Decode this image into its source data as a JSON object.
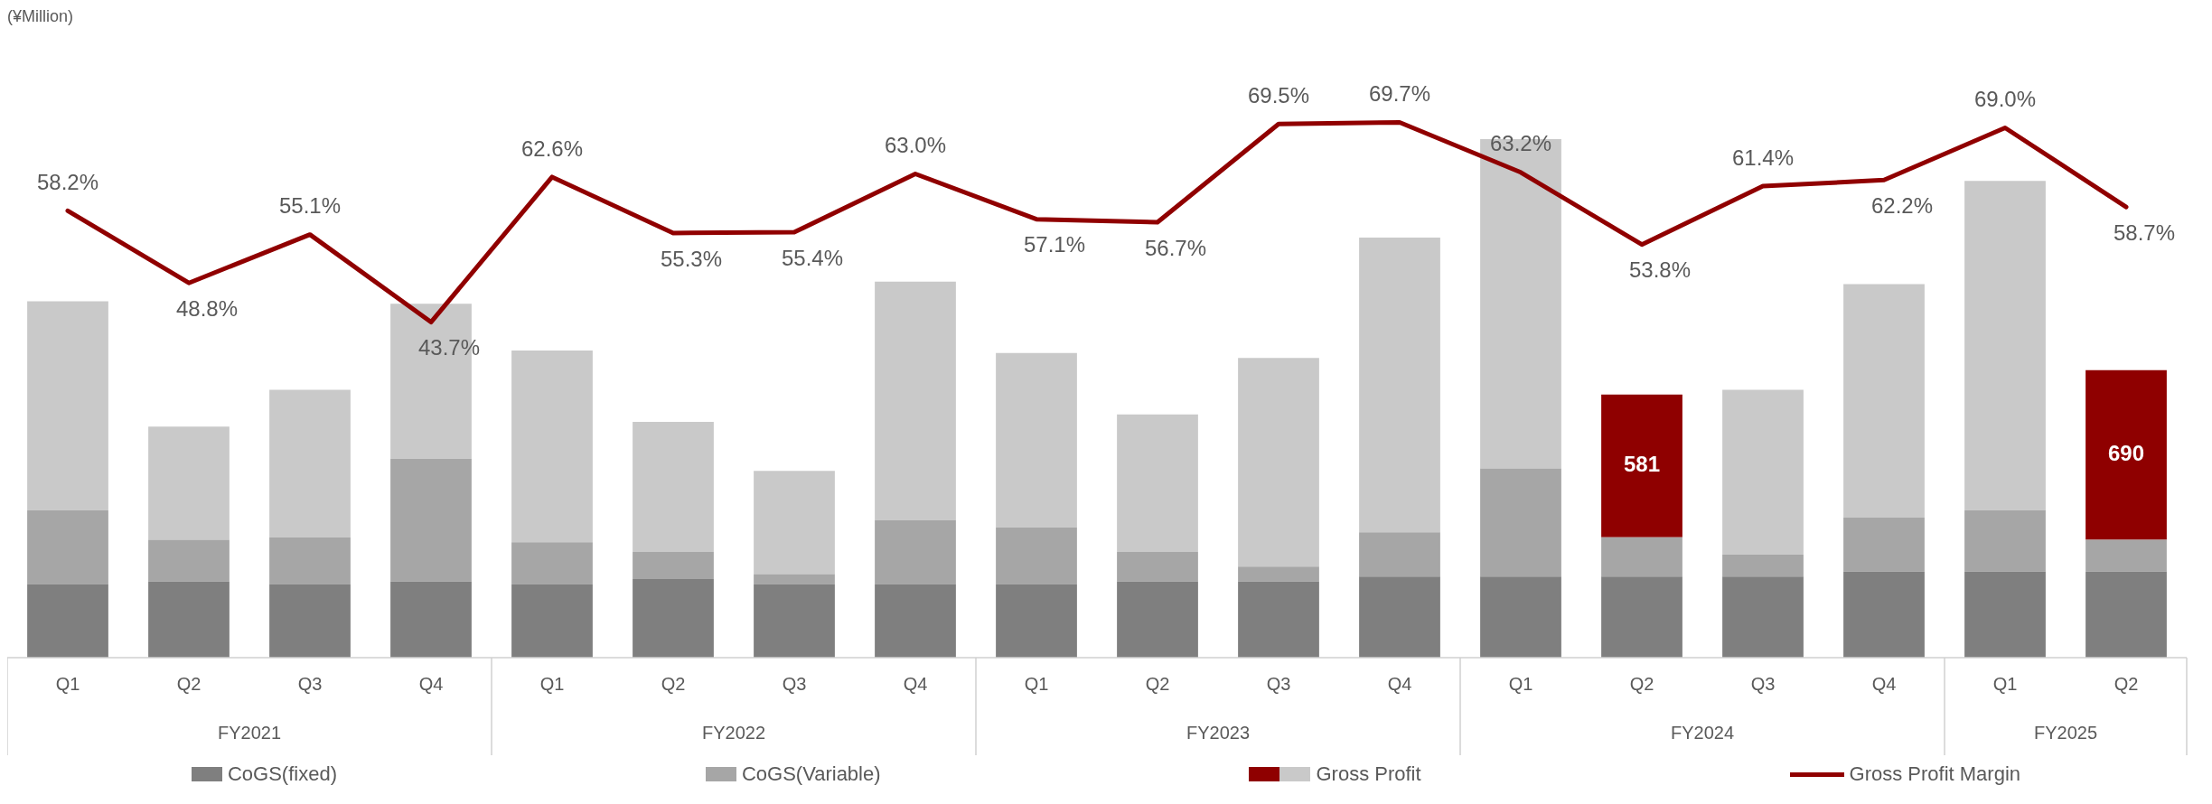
{
  "chart_data": {
    "type": "bar",
    "stacked": true,
    "tick_labels": "x",
    "categories": [
      "Q1",
      "Q2",
      "Q3",
      "Q4",
      "Q1",
      "Q2",
      "Q3",
      "Q4",
      "Q1",
      "Q2",
      "Q3",
      "Q4",
      "Q1",
      "Q2",
      "Q3",
      "Q4",
      "Q1",
      "Q2"
    ],
    "annotations": [
      "(¥Million)",
      "FY2021",
      "FY2022",
      "FY2023",
      "FY2024",
      "FY2025"
    ],
    "series": [
      {
        "name": "CoGS(fixed)",
        "color": "#7f7f7f",
        "values": [
          300,
          310,
          300,
          310,
          300,
          320,
          300,
          300,
          300,
          310,
          310,
          330,
          330,
          330,
          330,
          350,
          350,
          350
        ]
      },
      {
        "name": "CoGS(Variable)",
        "color": "#a6a6a6",
        "values": [
          300,
          170,
          190,
          500,
          170,
          110,
          40,
          260,
          230,
          120,
          60,
          180,
          440,
          160,
          90,
          220,
          250,
          130
        ]
      },
      {
        "name": "Gross Profit",
        "color": "#c9c9c9",
        "colors": [
          "#c9c9c9",
          "#c9c9c9",
          "#c9c9c9",
          "#c9c9c9",
          "#c9c9c9",
          "#c9c9c9",
          "#c9c9c9",
          "#c9c9c9",
          "#c9c9c9",
          "#c9c9c9",
          "#c9c9c9",
          "#c9c9c9",
          "#c9c9c9",
          "#8f0000",
          "#c9c9c9",
          "#c9c9c9",
          "#c9c9c9",
          "#8f0000"
        ],
        "values": [
          850,
          460,
          600,
          630,
          780,
          530,
          420,
          970,
          710,
          560,
          850,
          1200,
          1340,
          581,
          670,
          950,
          1340,
          690
        ],
        "value_labels": [
          null,
          null,
          null,
          null,
          null,
          null,
          null,
          null,
          null,
          null,
          null,
          null,
          null,
          "581",
          null,
          null,
          null,
          "690"
        ]
      },
      {
        "name": "Gross Profit Margin",
        "type": "line",
        "axis": "y2",
        "color": "#900000",
        "values": [
          58.2,
          48.8,
          55.1,
          43.7,
          62.6,
          55.3,
          55.4,
          63.0,
          57.1,
          56.7,
          69.5,
          69.7,
          63.2,
          53.8,
          61.4,
          62.2,
          69.0,
          58.7
        ],
        "value_labels": [
          "58.2%",
          "48.8%",
          "55.1%",
          "43.7%",
          "62.6%",
          "55.3%",
          "55.4%",
          "63.0%",
          "57.1%",
          "56.7%",
          "69.5%",
          "69.7%",
          "63.2%",
          "53.8%",
          "61.4%",
          "62.2%",
          "69.0%",
          "58.7%"
        ]
      }
    ],
    "legend": "bottom",
    "grid": false
  }
}
